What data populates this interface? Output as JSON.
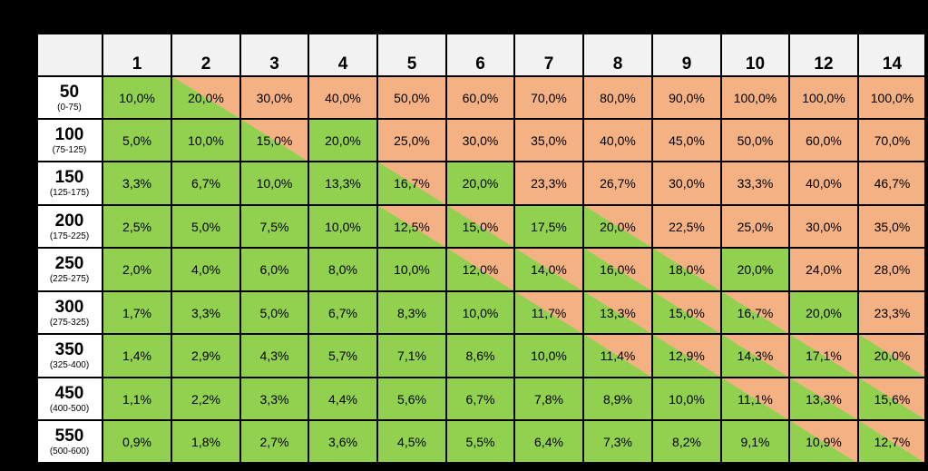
{
  "colors": {
    "green": "#92d050",
    "orange": "#f4b183",
    "header_bg": "#f2f2f2",
    "border": "#000000"
  },
  "columns": [
    "1",
    "2",
    "3",
    "4",
    "5",
    "6",
    "7",
    "8",
    "9",
    "10",
    "12",
    "14"
  ],
  "rows": [
    {
      "label": "50",
      "range": "(0-75)",
      "values": [
        "10,0%",
        "20,0%",
        "30,0%",
        "40,0%",
        "50,0%",
        "60,0%",
        "70,0%",
        "80,0%",
        "90,0%",
        "100,0%",
        "100,0%",
        "100,0%"
      ]
    },
    {
      "label": "100",
      "range": "(75-125)",
      "values": [
        "5,0%",
        "10,0%",
        "15,0%",
        "20,0%",
        "25,0%",
        "30,0%",
        "35,0%",
        "40,0%",
        "45,0%",
        "50,0%",
        "60,0%",
        "70,0%"
      ]
    },
    {
      "label": "150",
      "range": "(125-175)",
      "values": [
        "3,3%",
        "6,7%",
        "10,0%",
        "13,3%",
        "16,7%",
        "20,0%",
        "23,3%",
        "26,7%",
        "30,0%",
        "33,3%",
        "40,0%",
        "46,7%"
      ]
    },
    {
      "label": "200",
      "range": "(175-225)",
      "values": [
        "2,5%",
        "5,0%",
        "7,5%",
        "10,0%",
        "12,5%",
        "15,0%",
        "17,5%",
        "20,0%",
        "22,5%",
        "25,0%",
        "30,0%",
        "35,0%"
      ]
    },
    {
      "label": "250",
      "range": "(225-275)",
      "values": [
        "2,0%",
        "4,0%",
        "6,0%",
        "8,0%",
        "10,0%",
        "12,0%",
        "14,0%",
        "16,0%",
        "18,0%",
        "20,0%",
        "24,0%",
        "28,0%"
      ]
    },
    {
      "label": "300",
      "range": "(275-325)",
      "values": [
        "1,7%",
        "3,3%",
        "5,0%",
        "6,7%",
        "8,3%",
        "10,0%",
        "11,7%",
        "13,3%",
        "15,0%",
        "16,7%",
        "20,0%",
        "23,3%"
      ]
    },
    {
      "label": "350",
      "range": "(325-400)",
      "values": [
        "1,4%",
        "2,9%",
        "4,3%",
        "5,7%",
        "7,1%",
        "8,6%",
        "10,0%",
        "11,4%",
        "12,9%",
        "14,3%",
        "17,1%",
        "20,0%"
      ]
    },
    {
      "label": "450",
      "range": "(400-500)",
      "values": [
        "1,1%",
        "2,2%",
        "3,3%",
        "4,4%",
        "5,6%",
        "6,7%",
        "7,8%",
        "8,9%",
        "10,0%",
        "11,1%",
        "13,3%",
        "15,6%"
      ]
    },
    {
      "label": "550",
      "range": "(500-600)",
      "values": [
        "0,9%",
        "1,8%",
        "2,7%",
        "3,6%",
        "4,5%",
        "5,5%",
        "6,4%",
        "7,3%",
        "8,2%",
        "9,1%",
        "10,9%",
        "12,7%"
      ]
    }
  ],
  "fill": [
    [
      "G",
      "D",
      "O",
      "O",
      "O",
      "O",
      "O",
      "O",
      "O",
      "O",
      "O",
      "O"
    ],
    [
      "G",
      "G",
      "D",
      "G",
      "O",
      "O",
      "O",
      "O",
      "O",
      "O",
      "O",
      "O"
    ],
    [
      "G",
      "G",
      "G",
      "G",
      "D",
      "G",
      "O",
      "O",
      "O",
      "O",
      "O",
      "O"
    ],
    [
      "G",
      "G",
      "G",
      "G",
      "D",
      "D",
      "G",
      "D",
      "O",
      "O",
      "O",
      "O"
    ],
    [
      "G",
      "G",
      "G",
      "G",
      "G",
      "D",
      "D",
      "D",
      "D",
      "G",
      "O",
      "O"
    ],
    [
      "G",
      "G",
      "G",
      "G",
      "G",
      "G",
      "D",
      "D",
      "D",
      "D",
      "G",
      "O"
    ],
    [
      "G",
      "G",
      "G",
      "G",
      "G",
      "G",
      "G",
      "D",
      "D",
      "D",
      "D",
      "D"
    ],
    [
      "G",
      "G",
      "G",
      "G",
      "G",
      "G",
      "G",
      "G",
      "G",
      "D",
      "D",
      "D"
    ],
    [
      "G",
      "G",
      "G",
      "G",
      "G",
      "G",
      "G",
      "G",
      "G",
      "G",
      "D",
      "D"
    ]
  ]
}
